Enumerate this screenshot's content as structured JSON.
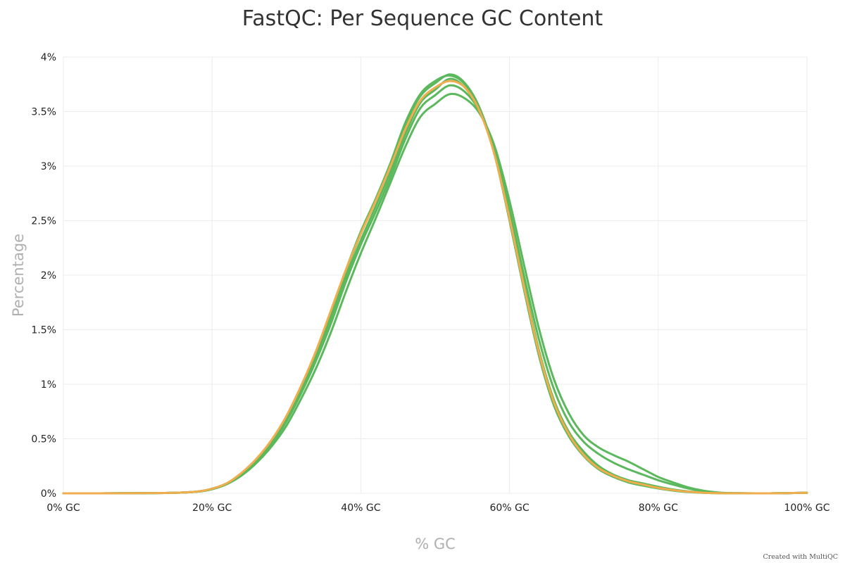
{
  "chart_data": {
    "type": "line",
    "title": "FastQC: Per Sequence GC Content",
    "xlabel": "% GC",
    "ylabel": "Percentage",
    "xlim": [
      0,
      100
    ],
    "ylim": [
      0,
      4
    ],
    "grid": true,
    "x_ticks": [
      {
        "value": 0,
        "label": "0% GC"
      },
      {
        "value": 20,
        "label": "20% GC"
      },
      {
        "value": 40,
        "label": "40% GC"
      },
      {
        "value": 60,
        "label": "60% GC"
      },
      {
        "value": 80,
        "label": "80% GC"
      },
      {
        "value": 100,
        "label": "100% GC"
      }
    ],
    "y_ticks": [
      {
        "value": 0,
        "label": "0%"
      },
      {
        "value": 0.5,
        "label": "0.5%"
      },
      {
        "value": 1,
        "label": "1%"
      },
      {
        "value": 1.5,
        "label": "1.5%"
      },
      {
        "value": 2,
        "label": "2%"
      },
      {
        "value": 2.5,
        "label": "2.5%"
      },
      {
        "value": 3,
        "label": "3%"
      },
      {
        "value": 3.5,
        "label": "3.5%"
      },
      {
        "value": 4,
        "label": "4%"
      }
    ],
    "x": [
      0,
      5,
      10,
      15,
      18,
      20,
      22,
      24,
      26,
      28,
      30,
      32,
      34,
      36,
      38,
      40,
      42,
      44,
      46,
      48,
      50,
      52,
      54,
      56,
      58,
      60,
      62,
      64,
      66,
      68,
      70,
      72,
      74,
      76,
      78,
      80,
      82,
      84,
      86,
      88,
      90,
      95,
      100
    ],
    "series": [
      {
        "color": "#5cb85c",
        "values": [
          0,
          0,
          0.002,
          0.005,
          0.015,
          0.04,
          0.09,
          0.18,
          0.3,
          0.46,
          0.68,
          0.95,
          1.25,
          1.6,
          1.98,
          2.32,
          2.63,
          2.95,
          3.3,
          3.58,
          3.7,
          3.8,
          3.72,
          3.5,
          3.12,
          2.55,
          1.9,
          1.3,
          0.85,
          0.56,
          0.38,
          0.25,
          0.17,
          0.12,
          0.09,
          0.06,
          0.035,
          0.018,
          0.008,
          0.003,
          0.001,
          0,
          0.005
        ]
      },
      {
        "color": "#5cb85c",
        "values": [
          0,
          0,
          0.002,
          0.005,
          0.015,
          0.04,
          0.09,
          0.17,
          0.29,
          0.45,
          0.66,
          0.92,
          1.22,
          1.56,
          1.94,
          2.28,
          2.58,
          2.9,
          3.25,
          3.53,
          3.65,
          3.74,
          3.68,
          3.5,
          3.15,
          2.6,
          1.98,
          1.4,
          0.95,
          0.65,
          0.47,
          0.36,
          0.28,
          0.22,
          0.17,
          0.12,
          0.08,
          0.045,
          0.02,
          0.006,
          0.002,
          0,
          0.005
        ]
      },
      {
        "color": "#5cb85c",
        "values": [
          0,
          0,
          0.002,
          0.005,
          0.015,
          0.038,
          0.085,
          0.165,
          0.28,
          0.43,
          0.62,
          0.87,
          1.15,
          1.48,
          1.85,
          2.2,
          2.52,
          2.85,
          3.18,
          3.45,
          3.57,
          3.66,
          3.62,
          3.48,
          3.18,
          2.68,
          2.08,
          1.5,
          1.04,
          0.73,
          0.53,
          0.42,
          0.35,
          0.29,
          0.22,
          0.15,
          0.1,
          0.055,
          0.025,
          0.008,
          0.002,
          0,
          0.005
        ]
      },
      {
        "color": "#5cb85c",
        "values": [
          0,
          0,
          0.002,
          0.005,
          0.016,
          0.042,
          0.092,
          0.185,
          0.31,
          0.48,
          0.7,
          0.98,
          1.3,
          1.67,
          2.05,
          2.4,
          2.7,
          3.03,
          3.4,
          3.66,
          3.78,
          3.83,
          3.75,
          3.52,
          3.1,
          2.5,
          1.85,
          1.25,
          0.8,
          0.52,
          0.34,
          0.22,
          0.15,
          0.1,
          0.07,
          0.045,
          0.025,
          0.012,
          0.005,
          0.002,
          0.001,
          0,
          0.005
        ]
      },
      {
        "color": "#5cb85c",
        "values": [
          0,
          0,
          0.002,
          0.005,
          0.016,
          0.042,
          0.092,
          0.186,
          0.31,
          0.48,
          0.69,
          0.97,
          1.29,
          1.65,
          2.03,
          2.38,
          2.69,
          3.02,
          3.38,
          3.64,
          3.76,
          3.84,
          3.76,
          3.53,
          3.12,
          2.52,
          1.87,
          1.27,
          0.82,
          0.53,
          0.35,
          0.23,
          0.16,
          0.11,
          0.08,
          0.05,
          0.03,
          0.015,
          0.006,
          0.002,
          0.001,
          0,
          0.005
        ]
      },
      {
        "color": "#f0ad4e",
        "values": [
          0,
          0,
          0.002,
          0.005,
          0.016,
          0.042,
          0.093,
          0.19,
          0.32,
          0.49,
          0.71,
          0.99,
          1.31,
          1.68,
          2.05,
          2.38,
          2.68,
          3.0,
          3.34,
          3.6,
          3.72,
          3.78,
          3.72,
          3.5,
          3.1,
          2.52,
          1.88,
          1.28,
          0.83,
          0.54,
          0.35,
          0.23,
          0.16,
          0.11,
          0.08,
          0.05,
          0.03,
          0.015,
          0.006,
          0.002,
          0.001,
          0,
          0.005
        ]
      }
    ]
  },
  "credit": "Created with MultiQC"
}
